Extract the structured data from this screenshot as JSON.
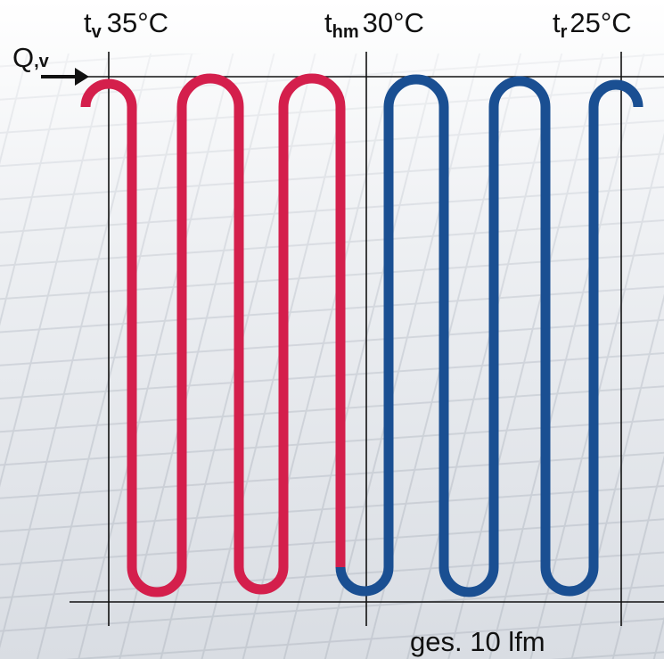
{
  "labels": {
    "flow": {
      "main": "Q",
      "sub": ",v"
    },
    "supply": {
      "main": "t",
      "sub": "v",
      "temp": "35°C"
    },
    "mid": {
      "main": "t",
      "sub": "hm",
      "temp": "30°C"
    },
    "return": {
      "main": "t",
      "sub": "r",
      "temp": "25°C"
    },
    "length": "ges. 10 lfm"
  },
  "colors": {
    "hot_pipe": "#d41f4c",
    "cold_pipe": "#1a4f92",
    "lines": "#111111",
    "background_light": "#f4f5f7",
    "background_grid": "#c9ced6"
  },
  "icons": {
    "flow_arrow": "arrow-right-icon"
  }
}
